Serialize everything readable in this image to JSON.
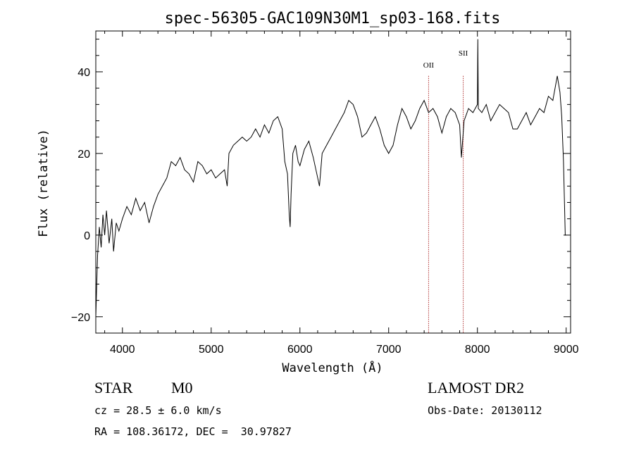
{
  "chart_data": {
    "type": "line",
    "title": "spec-56305-GAC109N30M1_sp03-168.fits",
    "xlabel": "Wavelength (Å)",
    "ylabel": "Flux (relative)",
    "xlim": [
      3700,
      9050
    ],
    "ylim": [
      -24,
      50
    ],
    "xticks": [
      4000,
      5000,
      6000,
      7000,
      8000,
      9000
    ],
    "yticks": [
      -20,
      0,
      20,
      40
    ],
    "ytick_labels": [
      "−20",
      "0",
      "20",
      "40"
    ],
    "grid": false,
    "series": [
      {
        "x": [
          3700,
          3720,
          3740,
          3760,
          3780,
          3800,
          3820,
          3850,
          3880,
          3900,
          3930,
          3960,
          4000,
          4050,
          4100,
          4150,
          4200,
          4250,
          4300,
          4350,
          4400,
          4450,
          4500,
          4550,
          4600,
          4650,
          4700,
          4750,
          4800,
          4850,
          4900,
          4950,
          5000,
          5050,
          5100,
          5150,
          5180,
          5200,
          5250,
          5300,
          5350,
          5400,
          5450,
          5500,
          5550,
          5600,
          5650,
          5700,
          5750,
          5800,
          5830,
          5860,
          5880,
          5890,
          5900,
          5920,
          5950,
          5980,
          6000,
          6050,
          6100,
          6150,
          6200,
          6220,
          6250,
          6300,
          6350,
          6400,
          6450,
          6500,
          6550,
          6600,
          6650,
          6700,
          6750,
          6800,
          6850,
          6900,
          6950,
          7000,
          7050,
          7100,
          7150,
          7200,
          7250,
          7300,
          7350,
          7400,
          7450,
          7500,
          7550,
          7600,
          7650,
          7700,
          7750,
          7800,
          7820,
          7850,
          7900,
          7950,
          8000,
          8005,
          8010,
          8050,
          8100,
          8150,
          8200,
          8250,
          8300,
          8350,
          8400,
          8450,
          8500,
          8550,
          8600,
          8650,
          8700,
          8750,
          8800,
          8850,
          8900,
          8930,
          8950,
          8970,
          8990,
          9000
        ],
        "y": [
          -20,
          -5,
          2,
          -3,
          5,
          0,
          6,
          -2,
          4,
          -4,
          3,
          1,
          4,
          7,
          5,
          9,
          6,
          8,
          3,
          7,
          10,
          12,
          14,
          18,
          17,
          19,
          16,
          15,
          13,
          18,
          17,
          15,
          16,
          14,
          15,
          16,
          12,
          20,
          22,
          23,
          24,
          23,
          24,
          26,
          24,
          27,
          25,
          28,
          29,
          26,
          18,
          15,
          5,
          2,
          10,
          20,
          22,
          18,
          17,
          21,
          23,
          19,
          14,
          12,
          20,
          22,
          24,
          26,
          28,
          30,
          33,
          32,
          29,
          24,
          25,
          27,
          29,
          26,
          22,
          20,
          22,
          27,
          31,
          29,
          26,
          28,
          31,
          33,
          30,
          31,
          29,
          25,
          29,
          31,
          30,
          27,
          19,
          28,
          31,
          30,
          32,
          48,
          31,
          30,
          32,
          28,
          30,
          32,
          31,
          30,
          26,
          26,
          28,
          30,
          27,
          29,
          31,
          30,
          34,
          33,
          39,
          35,
          29,
          18,
          0,
          0
        ]
      }
    ],
    "annotations": [
      {
        "label": "OII",
        "x": 7450,
        "label_y": 41
      },
      {
        "label": "SII",
        "x": 7840,
        "label_y": 44
      }
    ]
  },
  "info": {
    "object_class": "STAR",
    "subclass": "M0",
    "release": "LAMOST DR2",
    "cz": "cz = 28.5 ± 6.0 km/s",
    "obs_date": "Obs-Date: 20130112",
    "coords": "RA = 108.36172, DEC =  30.97827"
  }
}
